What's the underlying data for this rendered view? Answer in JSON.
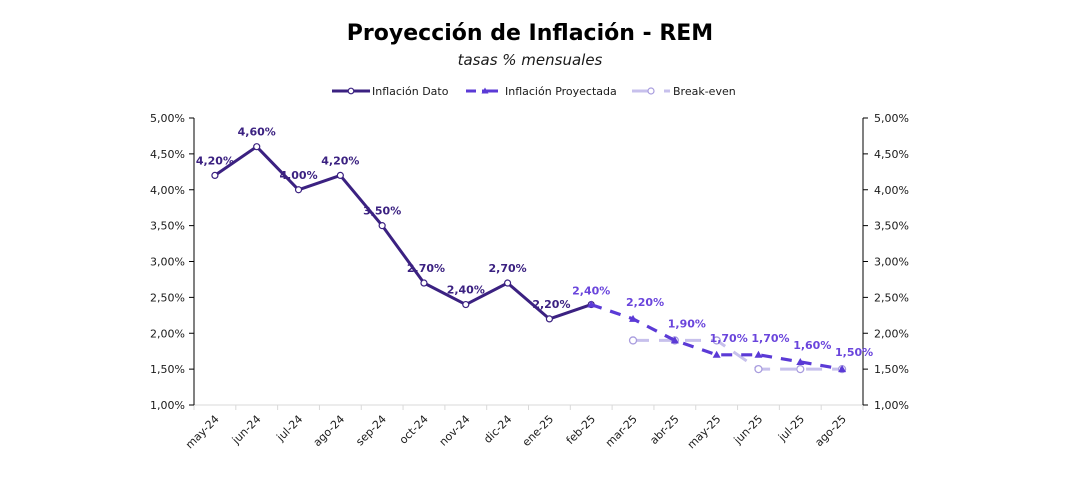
{
  "chart_data": {
    "type": "line",
    "title": "Proyección de Inflación - REM",
    "subtitle": "tasas % mensuales",
    "xlabel": "",
    "ylabel": "",
    "ylim": [
      1.0,
      5.0
    ],
    "yticks": [
      1.0,
      1.5,
      2.0,
      2.5,
      3.0,
      3.5,
      4.0,
      4.5,
      5.0
    ],
    "ytick_labels": [
      "1,00%",
      "1,50%",
      "2,00%",
      "2,50%",
      "3,00%",
      "3,50%",
      "4,00%",
      "4,50%",
      "5,00%"
    ],
    "secondary_axis": true,
    "grid": false,
    "legend_position": "top",
    "categories": [
      "may-24",
      "jun-24",
      "jul-24",
      "ago-24",
      "sep-24",
      "oct-24",
      "nov-24",
      "dic-24",
      "ene-25",
      "feb-25",
      "mar-25",
      "abr-25",
      "may-25",
      "jun-25",
      "jul-25",
      "ago-25"
    ],
    "series": [
      {
        "name": "Inflación Dato",
        "style": "solid",
        "marker": "circle",
        "color": "#3b2181",
        "label_color": "#3b2181",
        "values": [
          4.2,
          4.6,
          4.0,
          4.2,
          3.5,
          2.7,
          2.4,
          2.7,
          2.2,
          2.4,
          null,
          null,
          null,
          null,
          null,
          null
        ],
        "labels": [
          "4,20%",
          "4,60%",
          "4,00%",
          "4,20%",
          "3,50%",
          "2,70%",
          "2,40%",
          "2,70%",
          "2,20%",
          "2,40%",
          "",
          "",
          "",
          "",
          "",
          ""
        ]
      },
      {
        "name": "Inflación Proyectada",
        "style": "dashed",
        "marker": "triangle",
        "color": "#5b3ad6",
        "label_color": "#6a45dc",
        "values": [
          null,
          null,
          null,
          null,
          null,
          null,
          null,
          null,
          null,
          2.4,
          2.2,
          1.9,
          1.7,
          1.7,
          1.6,
          1.5
        ],
        "labels": [
          "",
          "",
          "",
          "",
          "",
          "",
          "",
          "",
          "",
          "2,40%",
          "2,20%",
          "1,90%",
          "1,70%",
          "1,70%",
          "1,60%",
          "1,50%"
        ]
      },
      {
        "name": "Break-even",
        "style": "long-dash",
        "marker": "circle",
        "color": "#c7c0ec",
        "values": [
          null,
          null,
          null,
          null,
          null,
          null,
          null,
          null,
          null,
          null,
          1.9,
          1.9,
          1.9,
          1.5,
          1.5,
          1.5
        ]
      }
    ]
  }
}
